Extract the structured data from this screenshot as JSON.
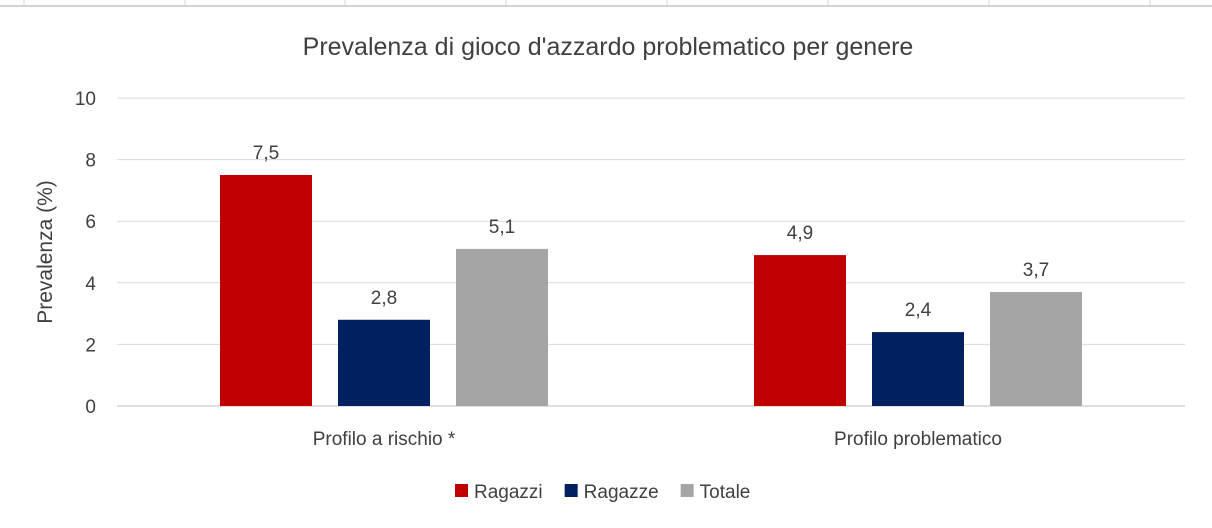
{
  "chart_data": {
    "type": "bar",
    "title": "Prevalenza di gioco d'azzardo problematico per genere",
    "xlabel": "",
    "ylabel": "Prevalenza (%)",
    "ylim": [
      0,
      10
    ],
    "yticks": [
      0,
      2,
      4,
      6,
      8,
      10
    ],
    "grid": true,
    "legend_position": "bottom",
    "categories": [
      "Profilo a rischio *",
      "Profilo problematico"
    ],
    "series": [
      {
        "name": "Ragazzi",
        "color": "#C00000",
        "values": [
          7.5,
          4.9
        ],
        "labels": [
          "7,5",
          "4,9"
        ]
      },
      {
        "name": "Ragazze",
        "color": "#002060",
        "values": [
          2.8,
          2.4
        ],
        "labels": [
          "2,8",
          "2,4"
        ]
      },
      {
        "name": "Totale",
        "color": "#A5A5A5",
        "values": [
          5.1,
          3.7
        ],
        "labels": [
          "5,1",
          "3,7"
        ]
      }
    ]
  }
}
